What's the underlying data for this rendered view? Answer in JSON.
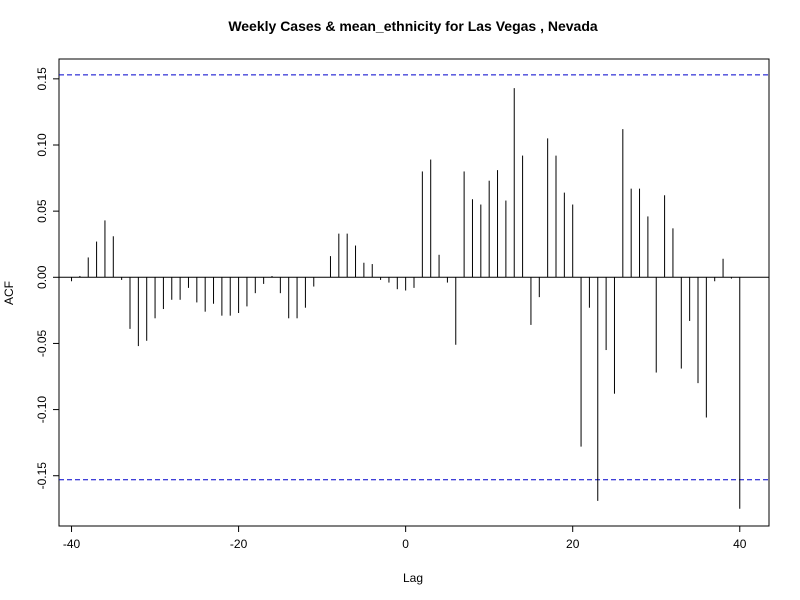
{
  "chart_data": {
    "type": "bar",
    "title": "Weekly Cases & mean_ethnicity for Las Vegas , Nevada",
    "xlabel": "Lag",
    "ylabel": "ACF",
    "xlim": [
      -41.5,
      43.5
    ],
    "ylim": [
      -0.188,
      0.165
    ],
    "x_ticks": [
      -40,
      -20,
      0,
      20,
      40
    ],
    "x_tick_labels": [
      "-40",
      "-20",
      "0",
      "20",
      "40"
    ],
    "y_ticks": [
      -0.15,
      -0.1,
      -0.05,
      0.0,
      0.05,
      0.1,
      0.15
    ],
    "y_tick_labels": [
      "-0.15",
      "-0.10",
      "-0.05",
      "0.00",
      "0.05",
      "0.10",
      "0.15"
    ],
    "confidence_limit": 0.153,
    "confidence_color": "#0000cc",
    "bar_color": "#000000",
    "grid": false,
    "lags": [
      -40,
      -39,
      -38,
      -37,
      -36,
      -35,
      -34,
      -33,
      -32,
      -31,
      -30,
      -29,
      -28,
      -27,
      -26,
      -25,
      -24,
      -23,
      -22,
      -21,
      -20,
      -19,
      -18,
      -17,
      -16,
      -15,
      -14,
      -13,
      -12,
      -11,
      -10,
      -9,
      -8,
      -7,
      -6,
      -5,
      -4,
      -3,
      -2,
      -1,
      0,
      1,
      2,
      3,
      4,
      5,
      6,
      7,
      8,
      9,
      10,
      11,
      12,
      13,
      14,
      15,
      16,
      17,
      18,
      19,
      20,
      21,
      22,
      23,
      24,
      25,
      26,
      27,
      28,
      29,
      30,
      31,
      32,
      33,
      34,
      35,
      36,
      37,
      38,
      39,
      40
    ],
    "values": [
      -0.003,
      0.001,
      0.015,
      0.027,
      0.043,
      0.031,
      -0.002,
      -0.039,
      -0.052,
      -0.048,
      -0.031,
      -0.024,
      -0.017,
      -0.017,
      -0.008,
      -0.019,
      -0.026,
      -0.02,
      -0.029,
      -0.029,
      -0.027,
      -0.022,
      -0.012,
      -0.005,
      0.001,
      -0.012,
      -0.031,
      -0.031,
      -0.023,
      -0.007,
      0.0,
      0.016,
      0.033,
      0.033,
      0.024,
      0.011,
      0.01,
      -0.002,
      -0.004,
      -0.009,
      -0.01,
      -0.008,
      0.08,
      0.089,
      0.017,
      -0.004,
      -0.051,
      0.08,
      0.059,
      0.055,
      0.073,
      0.081,
      0.058,
      0.143,
      0.092,
      -0.036,
      -0.015,
      0.105,
      0.092,
      0.064,
      0.055,
      -0.128,
      -0.023,
      -0.169,
      -0.055,
      -0.088,
      0.112,
      0.067,
      0.067,
      0.046,
      -0.072,
      0.062,
      0.037,
      -0.069,
      -0.033,
      -0.08,
      -0.106,
      -0.003,
      0.014,
      -0.001,
      -0.175
    ]
  }
}
